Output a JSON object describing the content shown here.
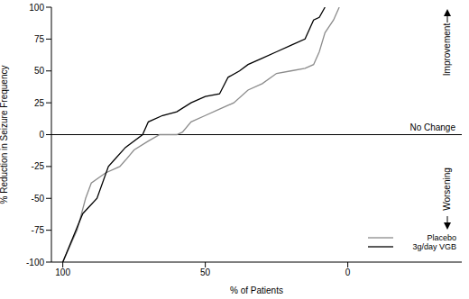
{
  "chart_data": {
    "type": "line",
    "x_label": "% of Patients",
    "y_label": "% Reduction in Seizure Frequency",
    "xlim": [
      104,
      -40
    ],
    "xticks": [
      100,
      50,
      0
    ],
    "ylim": [
      -100,
      100
    ],
    "yticks": [
      -100,
      -75,
      -50,
      -25,
      0,
      25,
      50,
      75,
      100
    ],
    "grid": false,
    "legend": "lower right",
    "baseline": 0,
    "annotations": [
      "Improvement",
      "No Change",
      "Worsening"
    ],
    "series": [
      {
        "name": "Placebo",
        "color": "#8c8c8c",
        "x": [
          100,
          95,
          92,
          90,
          85,
          80,
          78,
          75,
          70,
          66,
          60,
          58,
          55,
          50,
          45,
          40,
          35,
          30,
          25,
          20,
          15,
          12,
          10,
          8,
          5,
          3
        ],
        "values": [
          -100,
          -75,
          -50,
          -38,
          -30,
          -25,
          -20,
          -12,
          -5,
          0,
          0,
          2,
          10,
          15,
          20,
          25,
          35,
          40,
          48,
          50,
          52,
          55,
          65,
          80,
          90,
          100
        ]
      },
      {
        "name": "3g/day VGB",
        "color": "#000000",
        "x": [
          100,
          93,
          88,
          84,
          82,
          78,
          72,
          70,
          65,
          60,
          55,
          50,
          45,
          42,
          38,
          35,
          30,
          25,
          20,
          15,
          12,
          10,
          8
        ],
        "values": [
          -100,
          -62,
          -50,
          -25,
          -20,
          -10,
          0,
          10,
          15,
          18,
          25,
          30,
          32,
          45,
          50,
          55,
          60,
          65,
          70,
          75,
          90,
          92,
          100
        ]
      }
    ]
  }
}
